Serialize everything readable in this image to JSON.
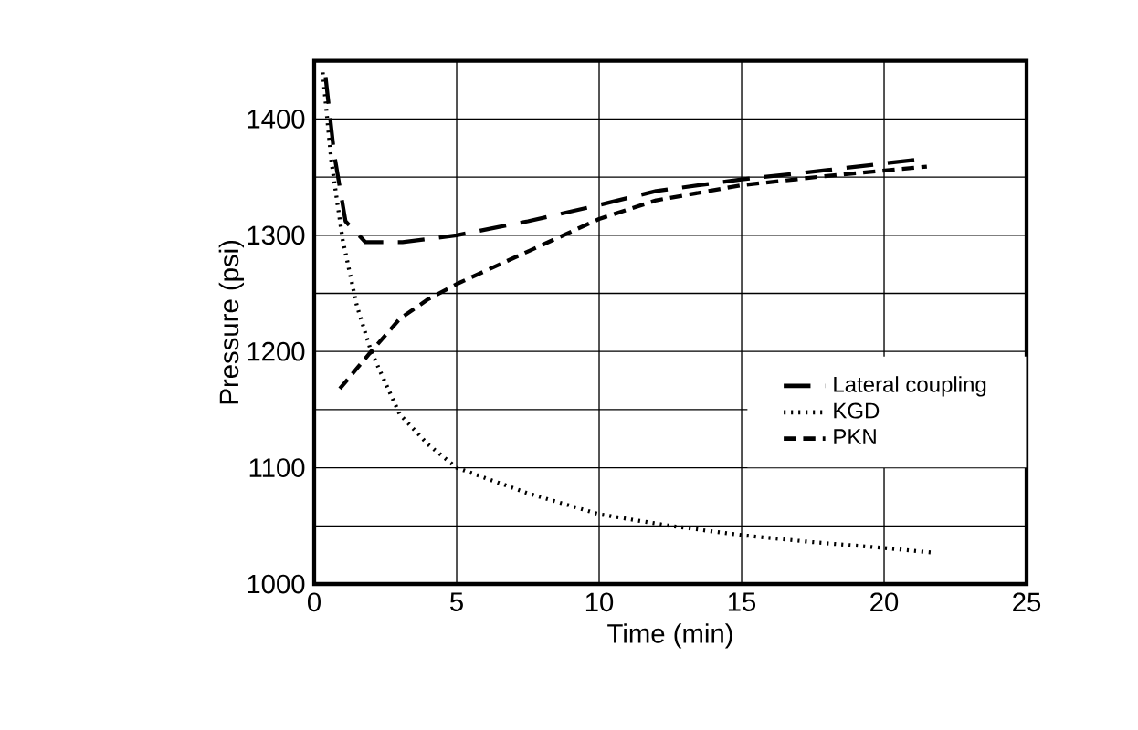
{
  "chart_data": {
    "type": "line",
    "xlabel": "Time (min)",
    "ylabel": "Pressure (psi)",
    "xlim": [
      0,
      25
    ],
    "xticks": [
      0,
      5,
      10,
      15,
      20,
      25
    ],
    "ylim": [
      1000,
      1450
    ],
    "yticks": [
      1000,
      {
        "value": 1050,
        "label": null
      },
      1100,
      {
        "value": 1150,
        "label": null
      },
      1200,
      {
        "value": 1250,
        "label": null
      },
      1300,
      {
        "value": 1350,
        "label": null
      },
      1400
    ],
    "grid": true,
    "legend": "right",
    "marker": "none",
    "series": [
      {
        "name": "Lateral coupling",
        "color": "#000000",
        "line_style": "long dashed",
        "x": [
          0.4,
          0.7,
          1.1,
          1.8,
          3.1,
          5,
          7.5,
          10,
          12,
          15,
          18,
          21.5
        ],
        "values": [
          1436,
          1370,
          1312,
          1294,
          1294,
          1300,
          1312,
          1326,
          1338,
          1348,
          1356,
          1366
        ]
      },
      {
        "name": "KGD",
        "color": "#000000",
        "line_style": "dotted",
        "x": [
          0.3,
          0.6,
          1,
          1.5,
          2,
          3,
          4,
          5,
          7.5,
          10,
          12.5,
          15,
          17.5,
          20,
          21.7
        ],
        "values": [
          1440,
          1364,
          1296,
          1239,
          1200,
          1146,
          1120,
          1100,
          1078,
          1060,
          1050,
          1042,
          1036,
          1031,
          1027
        ]
      },
      {
        "name": "PKN",
        "color": "#000000",
        "line_style": "dashed",
        "x": [
          0.9,
          2,
          3,
          4,
          5,
          7.5,
          10,
          12,
          15,
          18,
          21.5
        ],
        "values": [
          1168,
          1200,
          1228,
          1245,
          1258,
          1286,
          1314,
          1330,
          1343,
          1351,
          1359
        ]
      }
    ]
  }
}
